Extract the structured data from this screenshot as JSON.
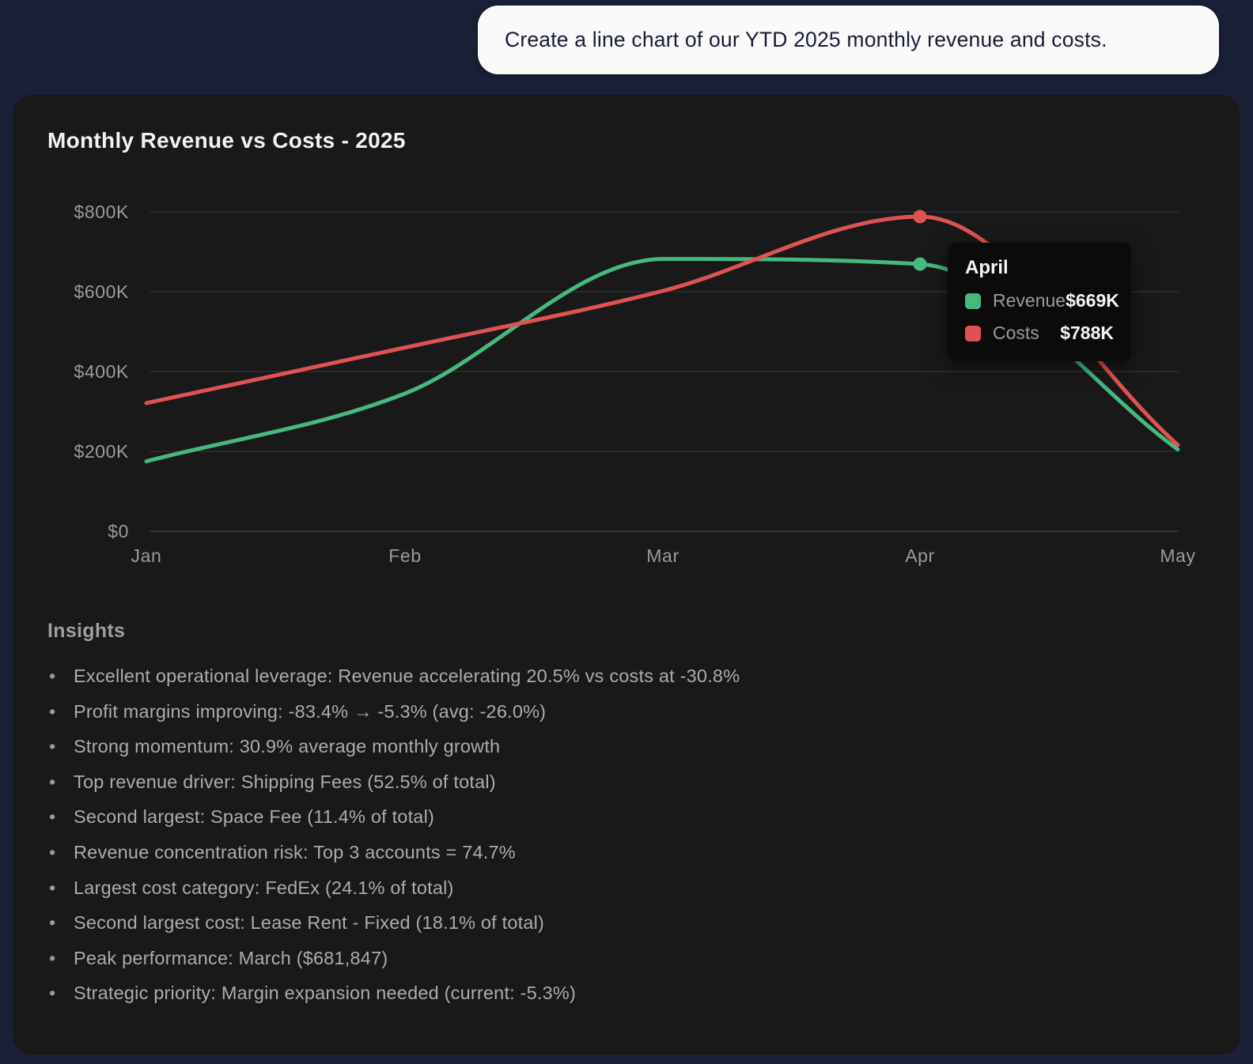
{
  "user_message": "Create a line chart of our YTD 2025 monthly revenue and costs.",
  "chart_data": {
    "type": "line",
    "title": "Monthly Revenue vs Costs - 2025",
    "categories": [
      "Jan",
      "Feb",
      "Mar",
      "Apr",
      "May"
    ],
    "unit": "USD thousands",
    "series": [
      {
        "name": "Revenue",
        "color": "#45b97e",
        "values_k": [
          175,
          345,
          682,
          669,
          205
        ]
      },
      {
        "name": "Costs",
        "color": "#e05252",
        "values_k": [
          321,
          460,
          602,
          788,
          216
        ]
      }
    ],
    "yticks": [
      {
        "label": "$0",
        "value_k": 0
      },
      {
        "label": "$200K",
        "value_k": 200
      },
      {
        "label": "$400K",
        "value_k": 400
      },
      {
        "label": "$600K",
        "value_k": 600
      },
      {
        "label": "$800K",
        "value_k": 800
      }
    ],
    "ylim_k": [
      0,
      800
    ],
    "grid": true,
    "legend_position": "none",
    "hover_index": 3
  },
  "tooltip": {
    "month": "April",
    "rows": [
      {
        "label": "Revenue",
        "value": "$669K",
        "color": "#45b97e"
      },
      {
        "label": "Costs",
        "value": "$788K",
        "color": "#e05252"
      }
    ]
  },
  "insights": {
    "heading": "Insights",
    "items": [
      "Excellent operational leverage: Revenue accelerating 20.5% vs costs at -30.8%",
      "Profit margins improving: -83.4% → -5.3% (avg: -26.0%)",
      "Strong momentum: 30.9% average monthly growth",
      "Top revenue driver: Shipping Fees (52.5% of total)",
      "Second largest: Space Fee (11.4% of total)",
      "Revenue concentration risk: Top 3 accounts = 74.7%",
      "Largest cost category: FedEx (24.1% of total)",
      "Second largest cost: Lease Rent - Fixed (18.1% of total)",
      "Peak performance: March ($681,847)",
      "Strategic priority: Margin expansion needed (current: -5.3%)"
    ]
  },
  "colors": {
    "page_bg": "#1a2036",
    "card_bg": "#191919",
    "bubble_bg": "#fafafa",
    "bubble_text": "#181d33",
    "revenue": "#45b97e",
    "costs": "#e05252",
    "gridline": "#363636",
    "axis_text": "#9a9a9a",
    "tooltip_bg": "#0b0b0b",
    "insight_text": "#ababab"
  }
}
